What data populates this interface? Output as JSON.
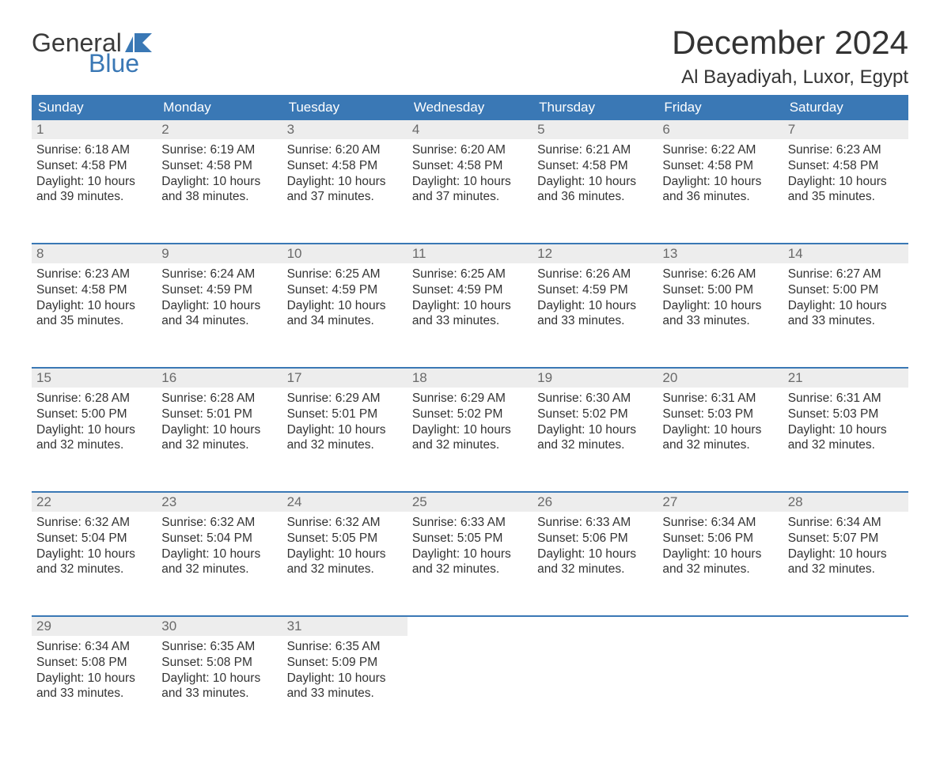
{
  "brand": {
    "word1": "General",
    "word2": "Blue",
    "accent_color": "#3a78b5",
    "text_color": "#3b3b3b"
  },
  "title": "December 2024",
  "location": "Al Bayadiyah, Luxor, Egypt",
  "colors": {
    "header_bg": "#3a78b5",
    "header_text": "#ffffff",
    "daynum_bg": "#ededed",
    "daynum_text": "#6a6a6a",
    "body_text": "#333333",
    "row_divider": "#3a78b5",
    "page_bg": "#ffffff"
  },
  "weekdays": [
    "Sunday",
    "Monday",
    "Tuesday",
    "Wednesday",
    "Thursday",
    "Friday",
    "Saturday"
  ],
  "weeks": [
    [
      {
        "n": "1",
        "sr": "6:18 AM",
        "ss": "4:58 PM",
        "dl": "10 hours and 39 minutes."
      },
      {
        "n": "2",
        "sr": "6:19 AM",
        "ss": "4:58 PM",
        "dl": "10 hours and 38 minutes."
      },
      {
        "n": "3",
        "sr": "6:20 AM",
        "ss": "4:58 PM",
        "dl": "10 hours and 37 minutes."
      },
      {
        "n": "4",
        "sr": "6:20 AM",
        "ss": "4:58 PM",
        "dl": "10 hours and 37 minutes."
      },
      {
        "n": "5",
        "sr": "6:21 AM",
        "ss": "4:58 PM",
        "dl": "10 hours and 36 minutes."
      },
      {
        "n": "6",
        "sr": "6:22 AM",
        "ss": "4:58 PM",
        "dl": "10 hours and 36 minutes."
      },
      {
        "n": "7",
        "sr": "6:23 AM",
        "ss": "4:58 PM",
        "dl": "10 hours and 35 minutes."
      }
    ],
    [
      {
        "n": "8",
        "sr": "6:23 AM",
        "ss": "4:58 PM",
        "dl": "10 hours and 35 minutes."
      },
      {
        "n": "9",
        "sr": "6:24 AM",
        "ss": "4:59 PM",
        "dl": "10 hours and 34 minutes."
      },
      {
        "n": "10",
        "sr": "6:25 AM",
        "ss": "4:59 PM",
        "dl": "10 hours and 34 minutes."
      },
      {
        "n": "11",
        "sr": "6:25 AM",
        "ss": "4:59 PM",
        "dl": "10 hours and 33 minutes."
      },
      {
        "n": "12",
        "sr": "6:26 AM",
        "ss": "4:59 PM",
        "dl": "10 hours and 33 minutes."
      },
      {
        "n": "13",
        "sr": "6:26 AM",
        "ss": "5:00 PM",
        "dl": "10 hours and 33 minutes."
      },
      {
        "n": "14",
        "sr": "6:27 AM",
        "ss": "5:00 PM",
        "dl": "10 hours and 33 minutes."
      }
    ],
    [
      {
        "n": "15",
        "sr": "6:28 AM",
        "ss": "5:00 PM",
        "dl": "10 hours and 32 minutes."
      },
      {
        "n": "16",
        "sr": "6:28 AM",
        "ss": "5:01 PM",
        "dl": "10 hours and 32 minutes."
      },
      {
        "n": "17",
        "sr": "6:29 AM",
        "ss": "5:01 PM",
        "dl": "10 hours and 32 minutes."
      },
      {
        "n": "18",
        "sr": "6:29 AM",
        "ss": "5:02 PM",
        "dl": "10 hours and 32 minutes."
      },
      {
        "n": "19",
        "sr": "6:30 AM",
        "ss": "5:02 PM",
        "dl": "10 hours and 32 minutes."
      },
      {
        "n": "20",
        "sr": "6:31 AM",
        "ss": "5:03 PM",
        "dl": "10 hours and 32 minutes."
      },
      {
        "n": "21",
        "sr": "6:31 AM",
        "ss": "5:03 PM",
        "dl": "10 hours and 32 minutes."
      }
    ],
    [
      {
        "n": "22",
        "sr": "6:32 AM",
        "ss": "5:04 PM",
        "dl": "10 hours and 32 minutes."
      },
      {
        "n": "23",
        "sr": "6:32 AM",
        "ss": "5:04 PM",
        "dl": "10 hours and 32 minutes."
      },
      {
        "n": "24",
        "sr": "6:32 AM",
        "ss": "5:05 PM",
        "dl": "10 hours and 32 minutes."
      },
      {
        "n": "25",
        "sr": "6:33 AM",
        "ss": "5:05 PM",
        "dl": "10 hours and 32 minutes."
      },
      {
        "n": "26",
        "sr": "6:33 AM",
        "ss": "5:06 PM",
        "dl": "10 hours and 32 minutes."
      },
      {
        "n": "27",
        "sr": "6:34 AM",
        "ss": "5:06 PM",
        "dl": "10 hours and 32 minutes."
      },
      {
        "n": "28",
        "sr": "6:34 AM",
        "ss": "5:07 PM",
        "dl": "10 hours and 32 minutes."
      }
    ],
    [
      {
        "n": "29",
        "sr": "6:34 AM",
        "ss": "5:08 PM",
        "dl": "10 hours and 33 minutes."
      },
      {
        "n": "30",
        "sr": "6:35 AM",
        "ss": "5:08 PM",
        "dl": "10 hours and 33 minutes."
      },
      {
        "n": "31",
        "sr": "6:35 AM",
        "ss": "5:09 PM",
        "dl": "10 hours and 33 minutes."
      },
      null,
      null,
      null,
      null
    ]
  ],
  "labels": {
    "sunrise": "Sunrise: ",
    "sunset": "Sunset: ",
    "daylight": "Daylight: "
  }
}
